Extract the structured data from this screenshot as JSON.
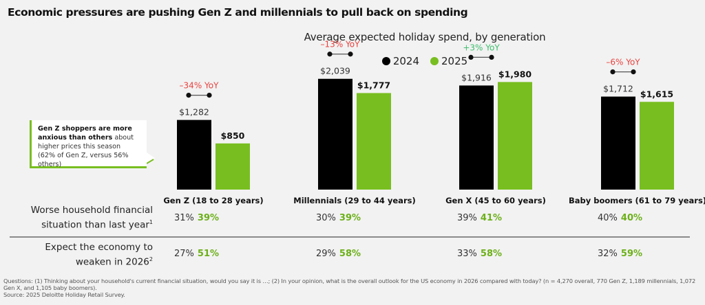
{
  "title": "Economic pressures are pushing Gen Z and millennials to pull back on spending",
  "callout": {
    "bold": "Gen Z shoppers are more anxious than others",
    "rest": " about higher prices this season (62% of Gen Z, versus 56% others)"
  },
  "colors": {
    "series_2024": "#000000",
    "series_2025": "#78be20",
    "yoy_negative": "#e8433f",
    "yoy_positive": "#3fbf6e",
    "pct_2025": "#6cb019"
  },
  "chart_data": {
    "type": "bar",
    "title": "Average expected holiday spend, by generation",
    "xlabel": "",
    "ylabel": "",
    "ylim": [
      0,
      2200
    ],
    "grid": false,
    "legend": "top-center",
    "categories": [
      "Gen Z (18 to 28 years)",
      "Millennials (29 to 44 years)",
      "Gen X (45 to 60 years)",
      "Baby boomers (61 to 79 years)"
    ],
    "series": [
      {
        "name": "2024",
        "values": [
          1282,
          2039,
          1916,
          1712
        ],
        "labels": [
          "$1,282",
          "$2,039",
          "$1,916",
          "$1,712"
        ]
      },
      {
        "name": "2025",
        "values": [
          850,
          1777,
          1980,
          1615
        ],
        "labels": [
          "$850",
          "$1,777",
          "$1,980",
          "$1,615"
        ]
      }
    ],
    "annotations": [
      {
        "category": "Gen Z (18 to 28 years)",
        "text": "–34% YoY",
        "direction": "negative"
      },
      {
        "category": "Millennials (29 to 44 years)",
        "text": "–13% YoY",
        "direction": "negative"
      },
      {
        "category": "Gen X (45 to 60 years)",
        "text": "+3% YoY",
        "direction": "positive"
      },
      {
        "category": "Baby boomers (61 to 79 years)",
        "text": "–6% YoY",
        "direction": "negative"
      }
    ]
  },
  "table": {
    "rows": [
      {
        "label_line1": "Worse household financial",
        "label_line2": "situation than last year",
        "footnote_mark": "1",
        "values": [
          {
            "y2024": "31%",
            "y2025": "39%"
          },
          {
            "y2024": "30%",
            "y2025": "39%"
          },
          {
            "y2024": "39%",
            "y2025": "41%"
          },
          {
            "y2024": "40%",
            "y2025": "40%"
          }
        ]
      },
      {
        "label_line1": "Expect the economy to",
        "label_line2": "weaken in 2026",
        "footnote_mark": "2",
        "values": [
          {
            "y2024": "27%",
            "y2025": "51%"
          },
          {
            "y2024": "29%",
            "y2025": "58%"
          },
          {
            "y2024": "33%",
            "y2025": "58%"
          },
          {
            "y2024": "32%",
            "y2025": "59%"
          }
        ]
      }
    ]
  },
  "footnote": {
    "line1": "Questions: (1) Thinking about your household's current financial situation, would you say it is …; (2) In your opinion, what is the overall outlook for the US economy in 2026 compared with today? (n = 4,270 overall, 770 Gen Z, 1,189 millennials, 1,072 Gen X, and 1,105 baby boomers).",
    "source": "Source: 2025 Deloitte Holiday Retail Survey."
  }
}
